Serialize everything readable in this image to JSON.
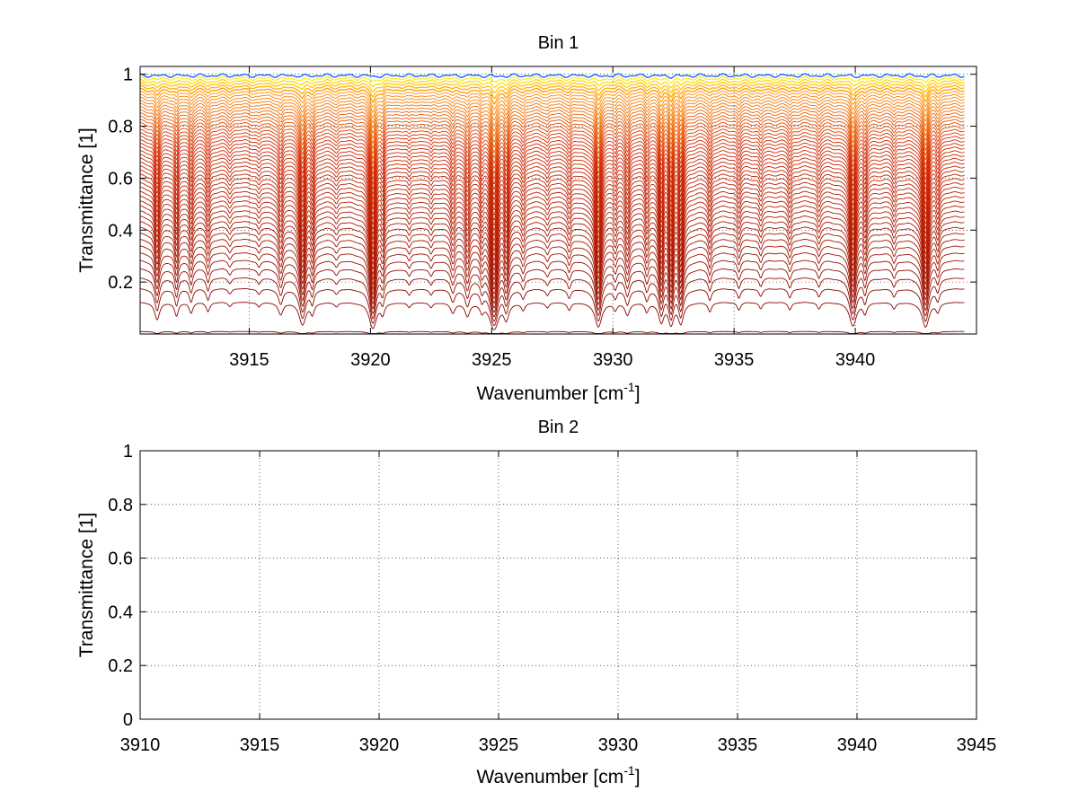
{
  "figure": {
    "background": "#ffffff"
  },
  "chart_data": [
    {
      "type": "line",
      "title": "Bin 1",
      "xlabel": "Wavenumber [cm",
      "xlabel_sup": "-1",
      "xlabel_suffix": "]",
      "ylabel": "Transmittance [1]",
      "xlim": [
        3910.5,
        3945
      ],
      "ylim": [
        0,
        1.03
      ],
      "xticks": [
        3915,
        3920,
        3925,
        3930,
        3935,
        3940
      ],
      "xtick_labels": [
        "3915",
        "3920",
        "3925",
        "3930",
        "3935",
        "3940"
      ],
      "yticks": [
        0.2,
        0.4,
        0.6,
        0.8,
        1
      ],
      "ytick_labels": [
        "0.2",
        "0.4",
        "0.6",
        "0.8",
        "1"
      ],
      "grid": true,
      "x_range_data": [
        3910.5,
        3944.5
      ],
      "n_series": 52,
      "series_description": "Family of transmittance spectra with baselines from ~0.01 to ~1, colored from dark red (low) through orange/yellow to blue (near 1)",
      "baseline_range": [
        0.01,
        0.995
      ],
      "absorption_lines": [
        {
          "x": 3911.2,
          "depth": 0.35,
          "width": 0.1
        },
        {
          "x": 3912.0,
          "depth": 0.25,
          "width": 0.08
        },
        {
          "x": 3912.6,
          "depth": 0.18,
          "width": 0.08
        },
        {
          "x": 3913.3,
          "depth": 0.15,
          "width": 0.08
        },
        {
          "x": 3914.2,
          "depth": 0.06,
          "width": 0.08
        },
        {
          "x": 3915.4,
          "depth": 0.07,
          "width": 0.08
        },
        {
          "x": 3916.3,
          "depth": 0.22,
          "width": 0.1
        },
        {
          "x": 3917.2,
          "depth": 0.55,
          "width": 0.12
        },
        {
          "x": 3917.6,
          "depth": 0.2,
          "width": 0.08
        },
        {
          "x": 3918.6,
          "depth": 0.06,
          "width": 0.08
        },
        {
          "x": 3920.1,
          "depth": 0.75,
          "width": 0.12
        },
        {
          "x": 3920.5,
          "depth": 0.2,
          "width": 0.08
        },
        {
          "x": 3921.6,
          "depth": 0.08,
          "width": 0.08
        },
        {
          "x": 3922.5,
          "depth": 0.08,
          "width": 0.08
        },
        {
          "x": 3923.4,
          "depth": 0.18,
          "width": 0.1
        },
        {
          "x": 3924.0,
          "depth": 0.25,
          "width": 0.1
        },
        {
          "x": 3924.6,
          "depth": 0.15,
          "width": 0.08
        },
        {
          "x": 3925.1,
          "depth": 0.85,
          "width": 0.14
        },
        {
          "x": 3925.6,
          "depth": 0.35,
          "width": 0.1
        },
        {
          "x": 3926.3,
          "depth": 0.12,
          "width": 0.08
        },
        {
          "x": 3927.3,
          "depth": 0.08,
          "width": 0.08
        },
        {
          "x": 3928.2,
          "depth": 0.12,
          "width": 0.08
        },
        {
          "x": 3929.4,
          "depth": 0.65,
          "width": 0.12
        },
        {
          "x": 3930.1,
          "depth": 0.12,
          "width": 0.08
        },
        {
          "x": 3930.6,
          "depth": 0.22,
          "width": 0.1
        },
        {
          "x": 3931.4,
          "depth": 0.15,
          "width": 0.08
        },
        {
          "x": 3932.0,
          "depth": 0.45,
          "width": 0.1
        },
        {
          "x": 3932.4,
          "depth": 0.55,
          "width": 0.1
        },
        {
          "x": 3932.8,
          "depth": 0.5,
          "width": 0.1
        },
        {
          "x": 3934.0,
          "depth": 0.15,
          "width": 0.08
        },
        {
          "x": 3935.2,
          "depth": 0.12,
          "width": 0.08
        },
        {
          "x": 3936.1,
          "depth": 0.1,
          "width": 0.08
        },
        {
          "x": 3937.3,
          "depth": 0.12,
          "width": 0.08
        },
        {
          "x": 3938.5,
          "depth": 0.1,
          "width": 0.08
        },
        {
          "x": 3939.9,
          "depth": 0.6,
          "width": 0.12
        },
        {
          "x": 3940.4,
          "depth": 0.2,
          "width": 0.08
        },
        {
          "x": 3941.6,
          "depth": 0.1,
          "width": 0.08
        },
        {
          "x": 3942.9,
          "depth": 0.65,
          "width": 0.12
        },
        {
          "x": 3943.4,
          "depth": 0.15,
          "width": 0.08
        }
      ]
    },
    {
      "type": "line",
      "title": "Bin 2",
      "xlabel": "Wavenumber [cm",
      "xlabel_sup": "-1",
      "xlabel_suffix": "]",
      "ylabel": "Transmittance [1]",
      "xlim": [
        3910,
        3945
      ],
      "ylim": [
        0,
        1
      ],
      "xticks": [
        3910,
        3915,
        3920,
        3925,
        3930,
        3935,
        3940,
        3945
      ],
      "xtick_labels": [
        "3910",
        "3915",
        "3920",
        "3925",
        "3930",
        "3935",
        "3940",
        "3945"
      ],
      "yticks": [
        0,
        0.2,
        0.4,
        0.6,
        0.8,
        1
      ],
      "ytick_labels": [
        "0",
        "0.2",
        "0.4",
        "0.6",
        "0.8",
        "1"
      ],
      "grid": true,
      "series": []
    }
  ]
}
